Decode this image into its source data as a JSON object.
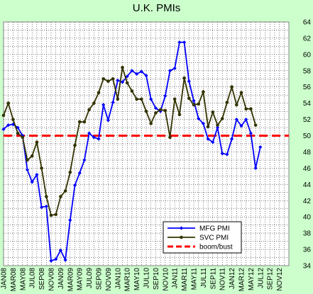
{
  "chart_data": {
    "type": "line",
    "title": "U.K. PMIs",
    "xlabel": "",
    "ylabel": "",
    "ylim": [
      34,
      64
    ],
    "y_ticks": [
      34,
      36,
      38,
      40,
      42,
      44,
      46,
      48,
      50,
      52,
      54,
      56,
      58,
      60,
      62,
      64
    ],
    "x_tick_labels": [
      "JAN08",
      "MAR08",
      "MAY08",
      "JUL08",
      "SEP08",
      "NOV08",
      "JAN09",
      "MAR09",
      "MAY09",
      "JUL09",
      "SEP09",
      "NOV09",
      "JAN10",
      "MAR10",
      "MAY10",
      "JUL10",
      "SEP10",
      "NOV10",
      "JAN11",
      "MAR11",
      "MAY11",
      "JUL11",
      "SEP11",
      "NOV11",
      "JAN12",
      "MAR12",
      "MAY12",
      "JUL12",
      "SEP12",
      "NOV12"
    ],
    "grid": true,
    "legend_position": "bottom-center",
    "series": [
      {
        "name": "MFG PMI",
        "color": "#0000ff",
        "values": [
          50.8,
          51.3,
          51.4,
          51.0,
          50.0,
          45.8,
          44.3,
          45.2,
          41.2,
          41.3,
          34.6,
          34.8,
          35.9,
          34.7,
          39.6,
          43.9,
          45.4,
          47.0,
          50.3,
          49.8,
          49.6,
          53.8,
          51.9,
          54.1,
          56.8,
          56.6,
          57.3,
          58.0,
          57.6,
          57.9,
          57.4,
          54.5,
          53.4,
          53.0,
          54.9,
          58.0,
          58.3,
          61.5,
          61.5,
          56.7,
          54.3,
          52.1,
          51.5,
          49.6,
          49.2,
          51.0,
          47.8,
          47.7,
          49.6,
          52.0,
          51.2,
          52.0,
          50.3,
          46.0,
          48.6
        ]
      },
      {
        "name": "SVC PMI",
        "color": "#333300",
        "values": [
          52.5,
          54.0,
          52.0,
          50.3,
          49.8,
          47.0,
          47.5,
          49.2,
          46.0,
          42.5,
          40.2,
          40.3,
          42.5,
          43.2,
          45.5,
          48.8,
          51.7,
          51.7,
          53.2,
          54.0,
          55.3,
          57.0,
          56.7,
          57.0,
          54.5,
          58.4,
          56.5,
          55.5,
          54.5,
          54.5,
          53.0,
          51.5,
          52.8,
          53.2,
          53.1,
          49.8,
          54.5,
          52.6,
          57.1,
          54.6,
          53.8,
          53.9,
          55.4,
          51.1,
          52.9,
          51.3,
          52.1,
          54.1,
          56.0,
          53.8,
          55.3,
          53.3,
          53.3,
          51.3
        ]
      },
      {
        "name": "boom/bust",
        "color": "#ff0000",
        "values": [
          50
        ]
      }
    ]
  }
}
